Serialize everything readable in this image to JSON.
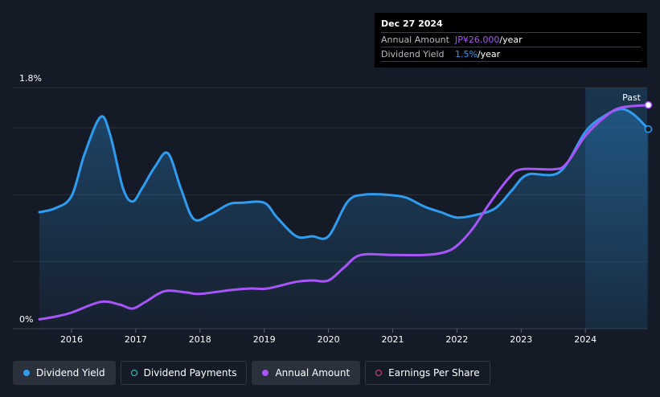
{
  "tooltip": {
    "date": "Dec 27 2024",
    "rows": [
      {
        "key": "Annual Amount",
        "value_highlight": "JP¥26.000",
        "value_suffix": "/year"
      },
      {
        "key": "Dividend Yield",
        "value_highlight": "1.5%",
        "value_suffix": "/year"
      }
    ]
  },
  "legend": [
    {
      "label": "Dividend Yield",
      "color": "#2f9cf0",
      "filled": true,
      "active": true
    },
    {
      "label": "Dividend Payments",
      "color": "#2ad4c4",
      "filled": false,
      "active": false
    },
    {
      "label": "Annual Amount",
      "color": "#a855f7",
      "filled": true,
      "active": true
    },
    {
      "label": "Earnings Per Share",
      "color": "#e0457b",
      "filled": false,
      "active": false
    }
  ],
  "chart_data": {
    "type": "line",
    "x_ticks": [
      "2016",
      "2017",
      "2018",
      "2019",
      "2020",
      "2021",
      "2022",
      "2023",
      "2024"
    ],
    "y_tick_labels": [
      "1.8%",
      "0%"
    ],
    "ylim": [
      0,
      1.8
    ],
    "xlim": [
      2015.5,
      2024.98
    ],
    "past_label": "Past",
    "forecast_start": 2024.0,
    "series": [
      {
        "name": "Dividend Yield",
        "color": "#2f9cf0",
        "points": [
          [
            2015.5,
            0.87
          ],
          [
            2015.75,
            0.9
          ],
          [
            2016.0,
            0.99
          ],
          [
            2016.2,
            1.3
          ],
          [
            2016.45,
            1.58
          ],
          [
            2016.6,
            1.45
          ],
          [
            2016.8,
            1.05
          ],
          [
            2016.95,
            0.95
          ],
          [
            2017.1,
            1.05
          ],
          [
            2017.3,
            1.21
          ],
          [
            2017.5,
            1.31
          ],
          [
            2017.7,
            1.05
          ],
          [
            2017.9,
            0.82
          ],
          [
            2018.15,
            0.85
          ],
          [
            2018.45,
            0.93
          ],
          [
            2018.65,
            0.94
          ],
          [
            2019.0,
            0.94
          ],
          [
            2019.2,
            0.83
          ],
          [
            2019.5,
            0.69
          ],
          [
            2019.75,
            0.69
          ],
          [
            2020.0,
            0.69
          ],
          [
            2020.3,
            0.95
          ],
          [
            2020.55,
            1.0
          ],
          [
            2020.9,
            1.0
          ],
          [
            2021.2,
            0.98
          ],
          [
            2021.5,
            0.91
          ],
          [
            2021.75,
            0.87
          ],
          [
            2022.0,
            0.83
          ],
          [
            2022.3,
            0.85
          ],
          [
            2022.6,
            0.9
          ],
          [
            2022.85,
            1.03
          ],
          [
            2023.1,
            1.15
          ],
          [
            2023.6,
            1.17
          ],
          [
            2024.0,
            1.47
          ],
          [
            2024.3,
            1.59
          ],
          [
            2024.55,
            1.64
          ],
          [
            2024.75,
            1.6
          ],
          [
            2024.98,
            1.49
          ]
        ]
      },
      {
        "name": "Annual Amount",
        "color": "#a855f7",
        "points": [
          [
            2015.5,
            0.07
          ],
          [
            2015.75,
            0.09
          ],
          [
            2016.0,
            0.12
          ],
          [
            2016.45,
            0.2
          ],
          [
            2016.75,
            0.18
          ],
          [
            2016.95,
            0.15
          ],
          [
            2017.15,
            0.2
          ],
          [
            2017.45,
            0.28
          ],
          [
            2017.8,
            0.27
          ],
          [
            2018.0,
            0.26
          ],
          [
            2018.5,
            0.29
          ],
          [
            2018.8,
            0.3
          ],
          [
            2019.05,
            0.3
          ],
          [
            2019.5,
            0.35
          ],
          [
            2019.75,
            0.36
          ],
          [
            2020.0,
            0.36
          ],
          [
            2020.25,
            0.46
          ],
          [
            2020.5,
            0.55
          ],
          [
            2021.0,
            0.55
          ],
          [
            2021.5,
            0.55
          ],
          [
            2021.8,
            0.57
          ],
          [
            2022.0,
            0.62
          ],
          [
            2022.25,
            0.75
          ],
          [
            2022.5,
            0.93
          ],
          [
            2022.8,
            1.12
          ],
          [
            2023.0,
            1.19
          ],
          [
            2023.5,
            1.19
          ],
          [
            2023.7,
            1.23
          ],
          [
            2024.0,
            1.44
          ],
          [
            2024.3,
            1.58
          ],
          [
            2024.55,
            1.65
          ],
          [
            2024.98,
            1.67
          ]
        ]
      }
    ]
  }
}
